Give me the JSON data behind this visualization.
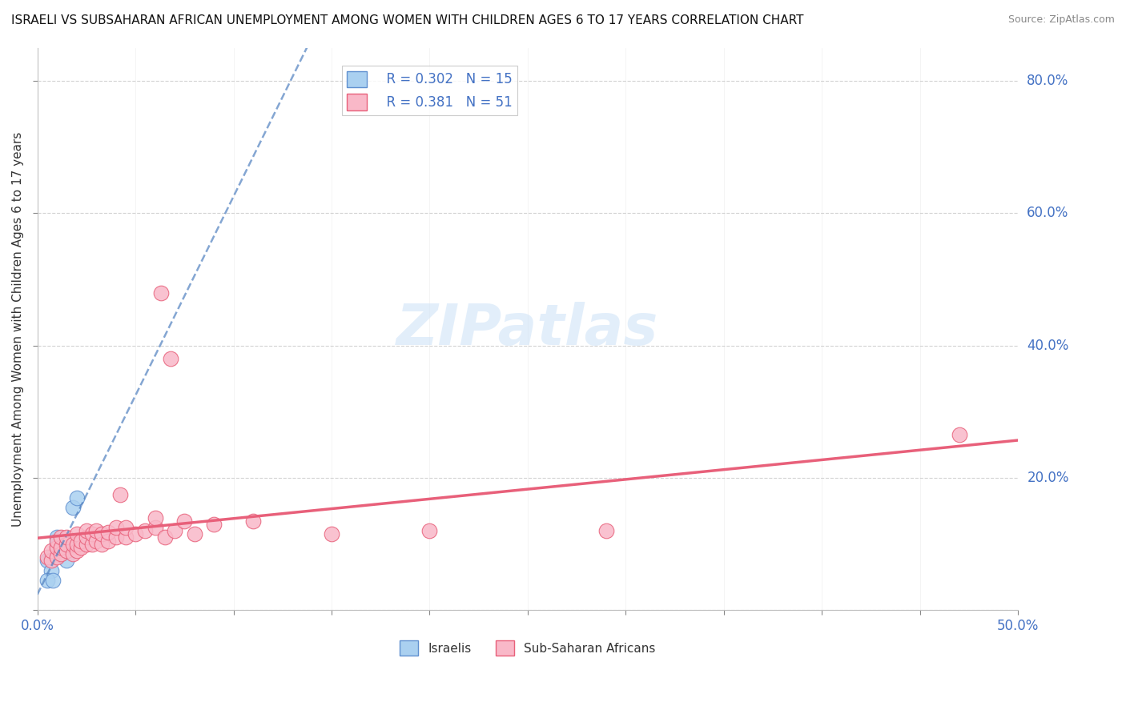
{
  "title": "ISRAELI VS SUBSAHARAN AFRICAN UNEMPLOYMENT AMONG WOMEN WITH CHILDREN AGES 6 TO 17 YEARS CORRELATION CHART",
  "source": "Source: ZipAtlas.com",
  "ylabel": "Unemployment Among Women with Children Ages 6 to 17 years",
  "xlim": [
    0.0,
    0.5
  ],
  "ylim": [
    0.0,
    0.85
  ],
  "legend_israeli_R": "R = 0.302",
  "legend_israeli_N": "N = 15",
  "legend_african_R": "R = 0.381",
  "legend_african_N": "N = 51",
  "israeli_color": "#aad0f0",
  "african_color": "#f9b8c8",
  "israeli_edge_color": "#6090d0",
  "african_edge_color": "#e8607a",
  "israeli_line_color": "#5080c0",
  "african_line_color": "#e8607a",
  "background_color": "#ffffff",
  "israeli_points": [
    [
      0.005,
      0.075
    ],
    [
      0.007,
      0.06
    ],
    [
      0.007,
      0.08
    ],
    [
      0.01,
      0.09
    ],
    [
      0.01,
      0.1
    ],
    [
      0.01,
      0.11
    ],
    [
      0.012,
      0.085
    ],
    [
      0.012,
      0.095
    ],
    [
      0.015,
      0.075
    ],
    [
      0.015,
      0.09
    ],
    [
      0.015,
      0.1
    ],
    [
      0.018,
      0.155
    ],
    [
      0.02,
      0.17
    ],
    [
      0.005,
      0.045
    ],
    [
      0.008,
      0.045
    ]
  ],
  "african_points": [
    [
      0.005,
      0.08
    ],
    [
      0.007,
      0.075
    ],
    [
      0.007,
      0.09
    ],
    [
      0.01,
      0.08
    ],
    [
      0.01,
      0.095
    ],
    [
      0.01,
      0.105
    ],
    [
      0.012,
      0.085
    ],
    [
      0.012,
      0.095
    ],
    [
      0.012,
      0.11
    ],
    [
      0.015,
      0.09
    ],
    [
      0.015,
      0.1
    ],
    [
      0.015,
      0.11
    ],
    [
      0.018,
      0.085
    ],
    [
      0.018,
      0.1
    ],
    [
      0.02,
      0.09
    ],
    [
      0.02,
      0.1
    ],
    [
      0.02,
      0.115
    ],
    [
      0.022,
      0.095
    ],
    [
      0.022,
      0.105
    ],
    [
      0.025,
      0.1
    ],
    [
      0.025,
      0.11
    ],
    [
      0.025,
      0.12
    ],
    [
      0.028,
      0.1
    ],
    [
      0.028,
      0.115
    ],
    [
      0.03,
      0.105
    ],
    [
      0.03,
      0.12
    ],
    [
      0.033,
      0.1
    ],
    [
      0.033,
      0.115
    ],
    [
      0.036,
      0.105
    ],
    [
      0.036,
      0.118
    ],
    [
      0.04,
      0.11
    ],
    [
      0.04,
      0.125
    ],
    [
      0.042,
      0.175
    ],
    [
      0.045,
      0.11
    ],
    [
      0.045,
      0.125
    ],
    [
      0.05,
      0.115
    ],
    [
      0.055,
      0.12
    ],
    [
      0.06,
      0.125
    ],
    [
      0.06,
      0.14
    ],
    [
      0.063,
      0.48
    ],
    [
      0.065,
      0.11
    ],
    [
      0.068,
      0.38
    ],
    [
      0.07,
      0.12
    ],
    [
      0.075,
      0.135
    ],
    [
      0.08,
      0.115
    ],
    [
      0.09,
      0.13
    ],
    [
      0.11,
      0.135
    ],
    [
      0.15,
      0.115
    ],
    [
      0.2,
      0.12
    ],
    [
      0.29,
      0.12
    ],
    [
      0.47,
      0.265
    ]
  ]
}
